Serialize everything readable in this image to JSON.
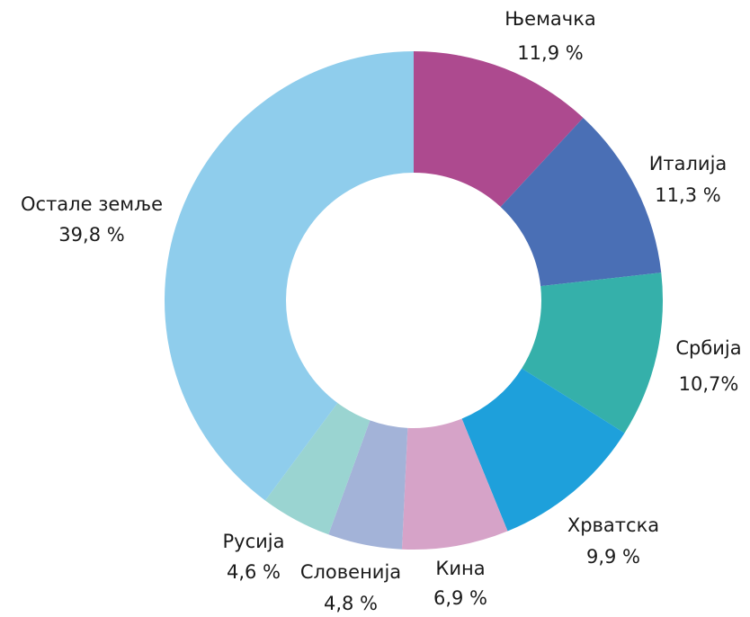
{
  "chart_data": {
    "type": "pie",
    "categories": [
      "Њемачка",
      "Италија",
      "Србија",
      "Хрватска",
      "Кина",
      "Словенија",
      "Русија",
      "Остале земље"
    ],
    "values": [
      11.9,
      11.3,
      10.7,
      9.9,
      6.9,
      4.8,
      4.6,
      39.8
    ],
    "value_labels": [
      "11,9 %",
      "11,3 %",
      "10,7%",
      "9,9 %",
      "6,9 %",
      "4,8 %",
      "4,6 %",
      "39,8 %"
    ],
    "colors": [
      "#ad4a8f",
      "#4a6fb5",
      "#35b0aa",
      "#1ea0db",
      "#d6a3c8",
      "#a3b3d8",
      "#9ad4d1",
      "#8fcdec"
    ]
  }
}
